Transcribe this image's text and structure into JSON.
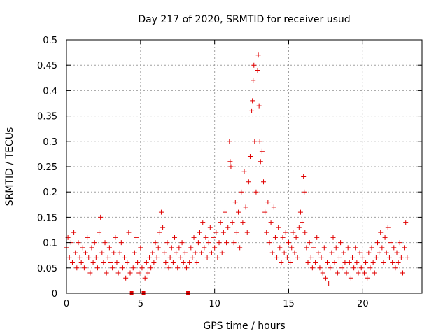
{
  "chart_data": {
    "type": "scatter",
    "title": "Day 217 of 2020, SRMTID for receiver usud",
    "xlabel": "GPS time / hours",
    "ylabel": "SRMTID / TECUs",
    "xlim": [
      0,
      24
    ],
    "ylim": [
      0,
      0.5
    ],
    "xticks": [
      0,
      5,
      10,
      15,
      20
    ],
    "xtick_labels": [
      "0",
      "5",
      "10",
      "15",
      "20"
    ],
    "yticks": [
      0,
      0.05,
      0.1,
      0.15,
      0.2,
      0.25,
      0.3,
      0.35,
      0.4,
      0.45,
      0.5
    ],
    "ytick_labels": [
      "0",
      "0.05",
      "0.1",
      "0.15",
      "0.2",
      "0.25",
      "0.3",
      "0.35",
      "0.4",
      "0.45",
      "0.5"
    ],
    "grid": true,
    "marker": "+",
    "color": "#e00000",
    "gap_markers_x": [
      4.4,
      5.2,
      8.2
    ],
    "series": [
      {
        "name": "SRMTID",
        "points": [
          [
            0.0,
            0.09
          ],
          [
            0.1,
            0.11
          ],
          [
            0.2,
            0.07
          ],
          [
            0.3,
            0.1
          ],
          [
            0.4,
            0.06
          ],
          [
            0.5,
            0.12
          ],
          [
            0.6,
            0.08
          ],
          [
            0.7,
            0.05
          ],
          [
            0.8,
            0.1
          ],
          [
            0.9,
            0.07
          ],
          [
            1.0,
            0.06
          ],
          [
            1.1,
            0.09
          ],
          [
            1.2,
            0.05
          ],
          [
            1.3,
            0.08
          ],
          [
            1.4,
            0.11
          ],
          [
            1.5,
            0.07
          ],
          [
            1.6,
            0.04
          ],
          [
            1.7,
            0.09
          ],
          [
            1.8,
            0.06
          ],
          [
            1.9,
            0.1
          ],
          [
            2.0,
            0.07
          ],
          [
            2.1,
            0.05
          ],
          [
            2.2,
            0.12
          ],
          [
            2.3,
            0.15
          ],
          [
            2.4,
            0.08
          ],
          [
            2.5,
            0.06
          ],
          [
            2.6,
            0.1
          ],
          [
            2.7,
            0.04
          ],
          [
            2.8,
            0.07
          ],
          [
            2.9,
            0.09
          ],
          [
            3.0,
            0.06
          ],
          [
            3.1,
            0.05
          ],
          [
            3.2,
            0.08
          ],
          [
            3.3,
            0.11
          ],
          [
            3.4,
            0.06
          ],
          [
            3.5,
            0.04
          ],
          [
            3.6,
            0.08
          ],
          [
            3.7,
            0.1
          ],
          [
            3.8,
            0.05
          ],
          [
            3.9,
            0.07
          ],
          [
            4.0,
            0.03
          ],
          [
            4.1,
            0.06
          ],
          [
            4.2,
            0.12
          ],
          [
            4.3,
            0.04
          ],
          [
            4.5,
            0.05
          ],
          [
            4.6,
            0.08
          ],
          [
            4.7,
            0.11
          ],
          [
            4.8,
            0.06
          ],
          [
            4.9,
            0.04
          ],
          [
            5.0,
            0.09
          ],
          [
            5.1,
            0.05
          ],
          [
            5.3,
            0.03
          ],
          [
            5.4,
            0.06
          ],
          [
            5.5,
            0.04
          ],
          [
            5.6,
            0.07
          ],
          [
            5.7,
            0.05
          ],
          [
            5.8,
            0.08
          ],
          [
            5.9,
            0.06
          ],
          [
            6.0,
            0.1
          ],
          [
            6.1,
            0.07
          ],
          [
            6.2,
            0.09
          ],
          [
            6.3,
            0.12
          ],
          [
            6.4,
            0.16
          ],
          [
            6.5,
            0.13
          ],
          [
            6.6,
            0.08
          ],
          [
            6.7,
            0.06
          ],
          [
            6.8,
            0.1
          ],
          [
            6.9,
            0.05
          ],
          [
            7.0,
            0.07
          ],
          [
            7.1,
            0.09
          ],
          [
            7.2,
            0.06
          ],
          [
            7.3,
            0.11
          ],
          [
            7.4,
            0.08
          ],
          [
            7.5,
            0.05
          ],
          [
            7.6,
            0.09
          ],
          [
            7.7,
            0.07
          ],
          [
            7.8,
            0.1
          ],
          [
            7.9,
            0.06
          ],
          [
            8.0,
            0.08
          ],
          [
            8.1,
            0.05
          ],
          [
            8.3,
            0.06
          ],
          [
            8.4,
            0.09
          ],
          [
            8.5,
            0.07
          ],
          [
            8.6,
            0.11
          ],
          [
            8.7,
            0.08
          ],
          [
            8.8,
            0.06
          ],
          [
            8.9,
            0.1
          ],
          [
            9.0,
            0.12
          ],
          [
            9.1,
            0.08
          ],
          [
            9.2,
            0.14
          ],
          [
            9.3,
            0.09
          ],
          [
            9.4,
            0.11
          ],
          [
            9.5,
            0.07
          ],
          [
            9.6,
            0.1
          ],
          [
            9.7,
            0.13
          ],
          [
            9.8,
            0.08
          ],
          [
            9.9,
            0.11
          ],
          [
            10.0,
            0.09
          ],
          [
            10.1,
            0.12
          ],
          [
            10.2,
            0.07
          ],
          [
            10.3,
            0.1
          ],
          [
            10.4,
            0.14
          ],
          [
            10.5,
            0.08
          ],
          [
            10.6,
            0.12
          ],
          [
            10.7,
            0.16
          ],
          [
            10.8,
            0.1
          ],
          [
            10.9,
            0.13
          ],
          [
            11.0,
            0.3
          ],
          [
            11.05,
            0.26
          ],
          [
            11.1,
            0.25
          ],
          [
            11.2,
            0.14
          ],
          [
            11.3,
            0.1
          ],
          [
            11.4,
            0.18
          ],
          [
            11.5,
            0.12
          ],
          [
            11.6,
            0.16
          ],
          [
            11.7,
            0.09
          ],
          [
            11.8,
            0.2
          ],
          [
            11.9,
            0.14
          ],
          [
            12.0,
            0.24
          ],
          [
            12.1,
            0.17
          ],
          [
            12.2,
            0.12
          ],
          [
            12.3,
            0.22
          ],
          [
            12.4,
            0.27
          ],
          [
            12.5,
            0.36
          ],
          [
            12.55,
            0.38
          ],
          [
            12.6,
            0.42
          ],
          [
            12.65,
            0.45
          ],
          [
            12.7,
            0.3
          ],
          [
            12.8,
            0.2
          ],
          [
            12.9,
            0.44
          ],
          [
            12.95,
            0.47
          ],
          [
            13.0,
            0.37
          ],
          [
            13.05,
            0.3
          ],
          [
            13.1,
            0.26
          ],
          [
            13.2,
            0.28
          ],
          [
            13.3,
            0.22
          ],
          [
            13.4,
            0.16
          ],
          [
            13.5,
            0.12
          ],
          [
            13.6,
            0.18
          ],
          [
            13.7,
            0.1
          ],
          [
            13.8,
            0.14
          ],
          [
            13.9,
            0.08
          ],
          [
            14.0,
            0.17
          ],
          [
            14.1,
            0.11
          ],
          [
            14.2,
            0.07
          ],
          [
            14.3,
            0.13
          ],
          [
            14.4,
            0.09
          ],
          [
            14.5,
            0.06
          ],
          [
            14.6,
            0.11
          ],
          [
            14.7,
            0.08
          ],
          [
            14.8,
            0.12
          ],
          [
            14.9,
            0.07
          ],
          [
            15.0,
            0.1
          ],
          [
            15.1,
            0.06
          ],
          [
            15.2,
            0.09
          ],
          [
            15.3,
            0.12
          ],
          [
            15.4,
            0.08
          ],
          [
            15.5,
            0.11
          ],
          [
            15.6,
            0.07
          ],
          [
            15.7,
            0.13
          ],
          [
            15.8,
            0.16
          ],
          [
            15.9,
            0.14
          ],
          [
            16.0,
            0.23
          ],
          [
            16.05,
            0.2
          ],
          [
            16.1,
            0.12
          ],
          [
            16.2,
            0.09
          ],
          [
            16.3,
            0.06
          ],
          [
            16.4,
            0.1
          ],
          [
            16.5,
            0.07
          ],
          [
            16.6,
            0.05
          ],
          [
            16.7,
            0.09
          ],
          [
            16.8,
            0.06
          ],
          [
            16.9,
            0.11
          ],
          [
            17.0,
            0.08
          ],
          [
            17.1,
            0.05
          ],
          [
            17.2,
            0.07
          ],
          [
            17.3,
            0.04
          ],
          [
            17.4,
            0.09
          ],
          [
            17.5,
            0.03
          ],
          [
            17.6,
            0.06
          ],
          [
            17.7,
            0.02
          ],
          [
            17.8,
            0.05
          ],
          [
            17.9,
            0.08
          ],
          [
            18.0,
            0.11
          ],
          [
            18.1,
            0.06
          ],
          [
            18.2,
            0.09
          ],
          [
            18.3,
            0.04
          ],
          [
            18.4,
            0.07
          ],
          [
            18.5,
            0.1
          ],
          [
            18.6,
            0.05
          ],
          [
            18.7,
            0.08
          ],
          [
            18.8,
            0.06
          ],
          [
            18.9,
            0.04
          ],
          [
            19.0,
            0.09
          ],
          [
            19.1,
            0.06
          ],
          [
            19.2,
            0.03
          ],
          [
            19.3,
            0.07
          ],
          [
            19.4,
            0.05
          ],
          [
            19.5,
            0.09
          ],
          [
            19.6,
            0.06
          ],
          [
            19.7,
            0.04
          ],
          [
            19.8,
            0.08
          ],
          [
            19.9,
            0.05
          ],
          [
            20.0,
            0.07
          ],
          [
            20.1,
            0.04
          ],
          [
            20.2,
            0.06
          ],
          [
            20.3,
            0.03
          ],
          [
            20.4,
            0.08
          ],
          [
            20.5,
            0.05
          ],
          [
            20.6,
            0.09
          ],
          [
            20.7,
            0.06
          ],
          [
            20.8,
            0.04
          ],
          [
            20.9,
            0.07
          ],
          [
            21.0,
            0.1
          ],
          [
            21.1,
            0.08
          ],
          [
            21.2,
            0.12
          ],
          [
            21.3,
            0.09
          ],
          [
            21.4,
            0.06
          ],
          [
            21.5,
            0.11
          ],
          [
            21.6,
            0.08
          ],
          [
            21.7,
            0.13
          ],
          [
            21.8,
            0.07
          ],
          [
            21.9,
            0.1
          ],
          [
            22.0,
            0.06
          ],
          [
            22.1,
            0.09
          ],
          [
            22.2,
            0.05
          ],
          [
            22.3,
            0.08
          ],
          [
            22.4,
            0.06
          ],
          [
            22.5,
            0.1
          ],
          [
            22.6,
            0.07
          ],
          [
            22.7,
            0.04
          ],
          [
            22.8,
            0.09
          ],
          [
            22.9,
            0.14
          ],
          [
            23.0,
            0.07
          ]
        ]
      }
    ]
  }
}
